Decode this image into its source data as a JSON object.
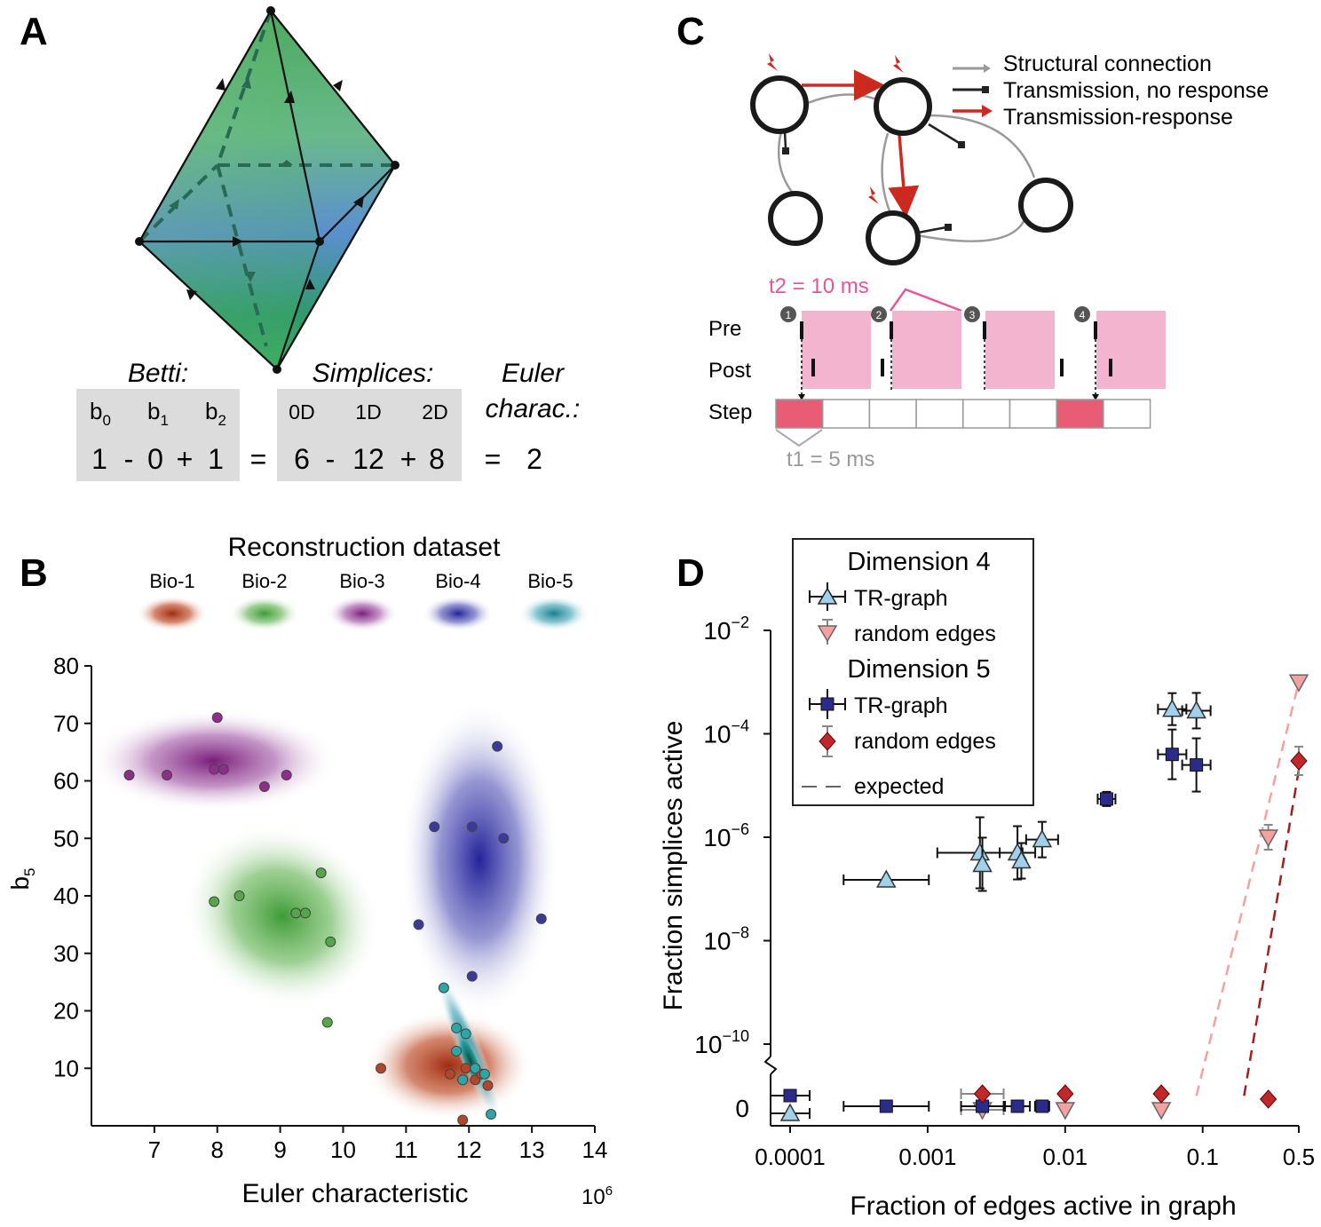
{
  "panels": {
    "A": "A",
    "B": "B",
    "C": "C",
    "D": "D"
  },
  "panelA": {
    "betti_title": "Betti:",
    "simplices_title": "Simplices:",
    "euler_title_1": "Euler",
    "euler_title_2": "charac.:",
    "betti_labels": [
      {
        "base": "b",
        "sub": "0"
      },
      {
        "base": "b",
        "sub": "1"
      },
      {
        "base": "b",
        "sub": "2"
      }
    ],
    "simplex_labels": [
      "0D",
      "1D",
      "2D"
    ],
    "betti_values": [
      "1",
      "0",
      "1"
    ],
    "simplex_values": [
      "6",
      "12",
      "8"
    ],
    "ops": {
      "minus": "-",
      "plus": "+",
      "equals": "="
    },
    "euler_value": "2"
  },
  "panelC": {
    "legend": [
      "Structural connection",
      "Transmission, no response",
      "Transmission-response"
    ],
    "t2_label": "t2 = 10 ms",
    "t1_label": "t1 = 5 ms",
    "row_labels": [
      "Pre",
      "Post",
      "Step"
    ],
    "step_markers": [
      "1",
      "2",
      "3",
      "4"
    ],
    "colors": {
      "structural": "#9a9a9a",
      "transmission": "#222222",
      "response": "#cc2a1e",
      "window": "#f2b4cf",
      "step_active": "#e85d75",
      "t2": "#e8549c"
    }
  },
  "chart_data": [
    {
      "type": "scatter",
      "panel": "B",
      "title": "Reconstruction dataset",
      "xlabel": "Euler characteristic",
      "x_multiplier": "10",
      "x_multiplier_exp": "6",
      "ylabel_base": "b",
      "ylabel_sub": "5",
      "xlim": [
        6.0,
        14.0
      ],
      "ylim": [
        0,
        80
      ],
      "xticks": [
        7,
        8,
        9,
        10,
        11,
        12,
        13,
        14
      ],
      "yticks": [
        10,
        20,
        30,
        40,
        50,
        60,
        70,
        80
      ],
      "series": [
        {
          "name": "Bio-1",
          "color": "#b5452a",
          "points": [
            [
              10.6,
              10
            ],
            [
              11.7,
              9
            ],
            [
              11.9,
              1
            ],
            [
              11.95,
              10
            ],
            [
              12.1,
              8
            ],
            [
              12.3,
              7
            ],
            [
              12.2,
              9
            ]
          ]
        },
        {
          "name": "Bio-2",
          "color": "#55a84a",
          "points": [
            [
              7.95,
              39
            ],
            [
              8.35,
              40
            ],
            [
              9.25,
              37
            ],
            [
              9.4,
              37
            ],
            [
              9.65,
              44
            ],
            [
              9.8,
              32
            ],
            [
              9.75,
              18
            ]
          ]
        },
        {
          "name": "Bio-3",
          "color": "#8e2d8c",
          "points": [
            [
              6.6,
              61
            ],
            [
              7.2,
              61
            ],
            [
              8.0,
              71
            ],
            [
              7.95,
              62
            ],
            [
              8.1,
              62
            ],
            [
              8.75,
              59
            ],
            [
              9.1,
              61
            ]
          ]
        },
        {
          "name": "Bio-4",
          "color": "#3a3a9e",
          "points": [
            [
              12.45,
              66
            ],
            [
              11.45,
              52
            ],
            [
              12.05,
              52
            ],
            [
              12.55,
              50
            ],
            [
              11.2,
              35
            ],
            [
              13.15,
              36
            ],
            [
              12.05,
              26
            ]
          ]
        },
        {
          "name": "Bio-5",
          "color": "#2aa8a8",
          "points": [
            [
              11.6,
              24
            ],
            [
              11.8,
              17
            ],
            [
              11.8,
              13
            ],
            [
              11.95,
              16
            ],
            [
              12.1,
              10
            ],
            [
              12.25,
              9
            ],
            [
              11.9,
              8
            ],
            [
              12.35,
              2
            ]
          ]
        }
      ]
    },
    {
      "type": "scatter",
      "panel": "D",
      "xlabel": "Fraction of edges active in graph",
      "ylabel": "Fraction simplices  active",
      "x_scale": "log",
      "y_scale": "log",
      "xticks": [
        "0.0001",
        "0.001",
        "0.01",
        "0.1",
        "0.5"
      ],
      "yticks": [
        {
          "base": "10",
          "exp": "−2"
        },
        {
          "base": "10",
          "exp": "−4"
        },
        {
          "base": "10",
          "exp": "−6"
        },
        {
          "base": "10",
          "exp": "−8"
        },
        {
          "base": "10",
          "exp": "−10"
        },
        {
          "base": "0",
          "exp": ""
        }
      ],
      "legend": {
        "headers": [
          "Dimension 4",
          "Dimension 5"
        ],
        "entries": [
          "TR-graph",
          "random edges",
          "TR-graph",
          "random edges",
          "expected"
        ]
      },
      "series": [
        {
          "name": "Dimension 4 TR-graph",
          "marker": "triangle-up",
          "color": "#9fd0ec",
          "points": [
            [
              0.0005,
              1.5e-07
            ],
            [
              0.0024,
              5e-07
            ],
            [
              0.0025,
              3e-07
            ],
            [
              0.0045,
              5e-07
            ],
            [
              0.0048,
              3.5e-07
            ],
            [
              0.0068,
              9e-07
            ],
            [
              0.06,
              0.0003
            ],
            [
              0.09,
              0.00028
            ],
            [
              0.0001,
              0
            ]
          ]
        },
        {
          "name": "Dimension 4 random edges",
          "marker": "triangle-down",
          "color": "#f4a1a1",
          "points": [
            [
              0.3,
              1e-06
            ],
            [
              0.5,
              0.001
            ],
            [
              0.0025,
              0
            ],
            [
              0.01,
              0
            ],
            [
              0.05,
              0
            ]
          ]
        },
        {
          "name": "Dimension 5 TR-graph",
          "marker": "square",
          "color": "#2b2b8a",
          "points": [
            [
              0.02,
              5.5e-06
            ],
            [
              0.06,
              4e-05
            ],
            [
              0.09,
              2.5e-05
            ],
            [
              0.0001,
              0
            ],
            [
              0.0005,
              0
            ],
            [
              0.0025,
              0
            ],
            [
              0.0045,
              0
            ],
            [
              0.0068,
              0
            ]
          ]
        },
        {
          "name": "Dimension 5 random edges",
          "marker": "diamond",
          "color": "#c0282a",
          "points": [
            [
              0.5,
              3e-05
            ],
            [
              0.0025,
              0
            ],
            [
              0.01,
              0
            ],
            [
              0.05,
              0
            ],
            [
              0.3,
              0
            ]
          ]
        }
      ]
    }
  ]
}
